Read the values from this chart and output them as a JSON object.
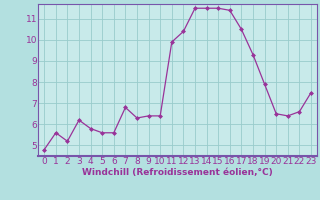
{
  "x": [
    0,
    1,
    2,
    3,
    4,
    5,
    6,
    7,
    8,
    9,
    10,
    11,
    12,
    13,
    14,
    15,
    16,
    17,
    18,
    19,
    20,
    21,
    22,
    23
  ],
  "y": [
    4.8,
    5.6,
    5.2,
    6.2,
    5.8,
    5.6,
    5.6,
    6.8,
    6.3,
    6.4,
    6.4,
    9.9,
    10.4,
    11.5,
    11.5,
    11.5,
    11.4,
    10.5,
    9.3,
    7.9,
    6.5,
    6.4,
    6.6,
    7.5
  ],
  "line_color": "#993399",
  "marker": "D",
  "marker_size": 2.0,
  "bg_color": "#b3e0e0",
  "grid_color": "#99cccc",
  "xlabel": "Windchill (Refroidissement éolien,°C)",
  "xlabel_color": "#993399",
  "tick_color": "#993399",
  "ylim": [
    4.5,
    11.7
  ],
  "xlim": [
    -0.5,
    23.5
  ],
  "yticks": [
    5,
    6,
    7,
    8,
    9,
    10,
    11
  ],
  "xticks": [
    0,
    1,
    2,
    3,
    4,
    5,
    6,
    7,
    8,
    9,
    10,
    11,
    12,
    13,
    14,
    15,
    16,
    17,
    18,
    19,
    20,
    21,
    22,
    23
  ],
  "spine_color": "#7755aa",
  "axis_bg_color": "#c8eaea",
  "tick_fontsize": 6.5,
  "xlabel_fontsize": 6.5
}
